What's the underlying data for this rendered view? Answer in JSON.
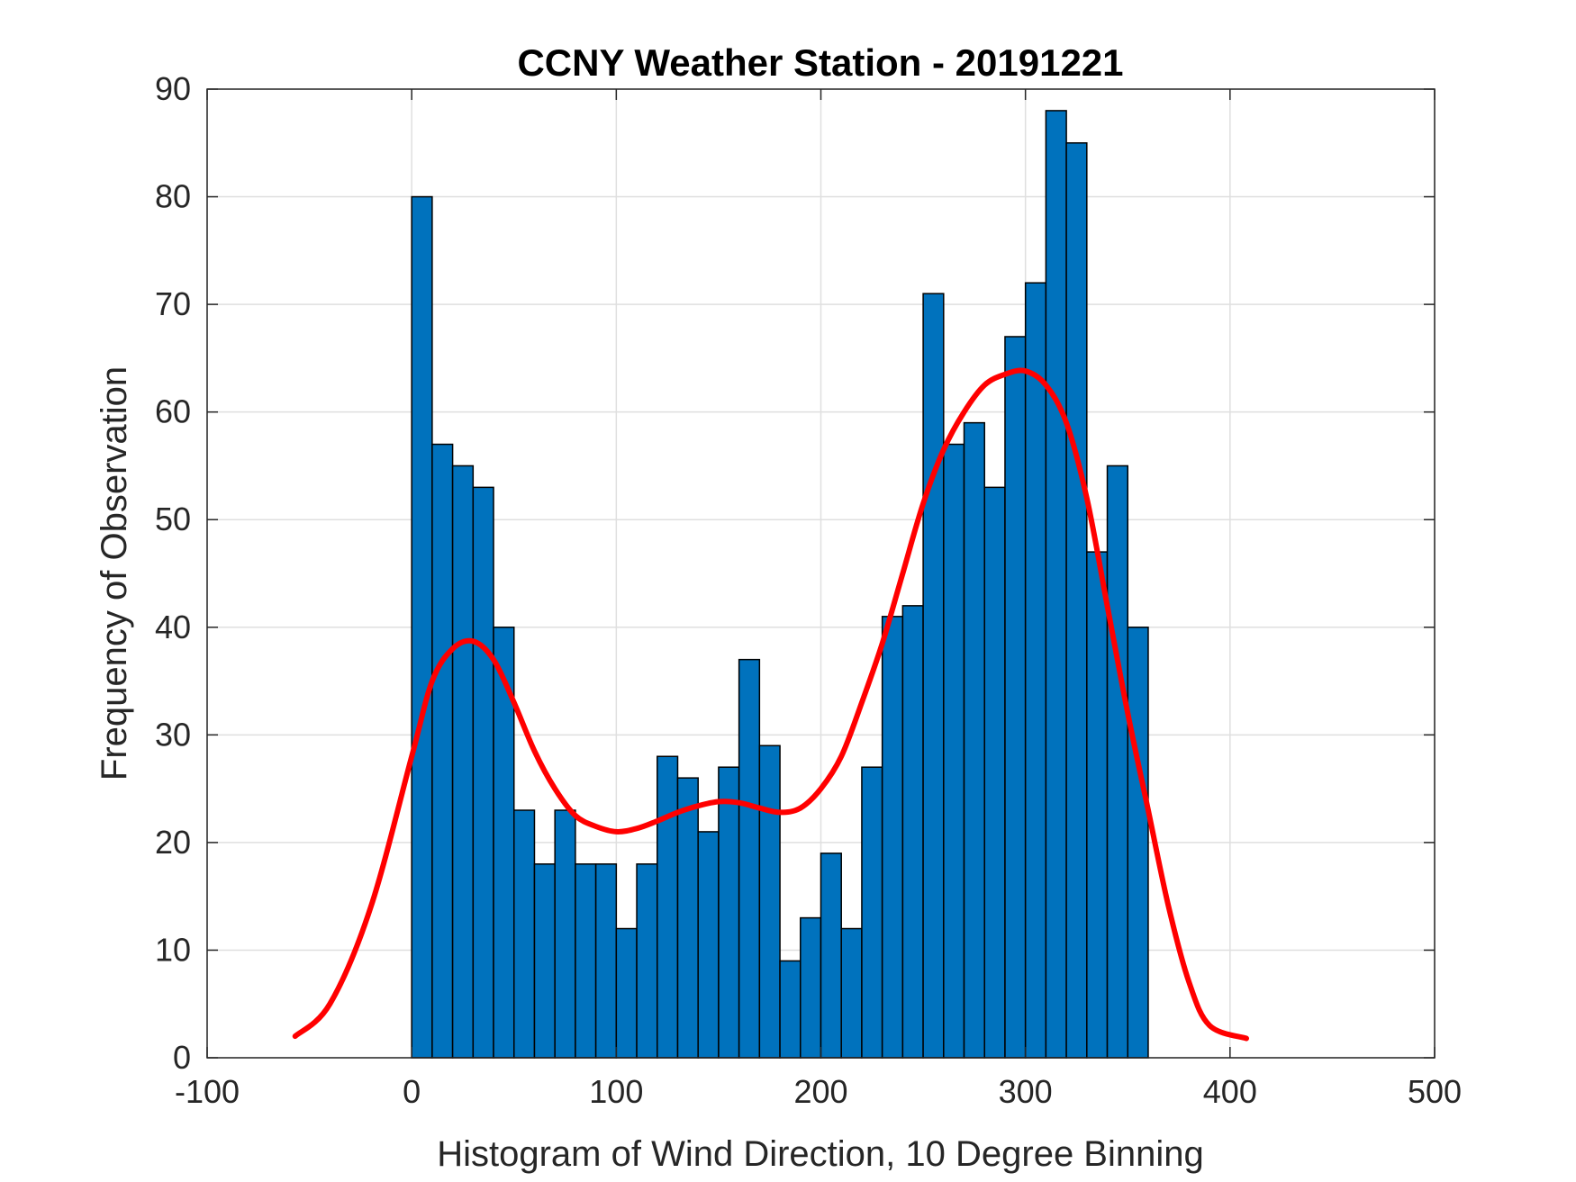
{
  "chart_data": {
    "type": "bar",
    "title": "CCNY Weather Station - 20191221",
    "xlabel": "Histogram of Wind Direction, 10 Degree Binning",
    "ylabel": "Frequency of Observation",
    "xlim": [
      -100,
      500
    ],
    "ylim": [
      0,
      90
    ],
    "xticks": [
      -100,
      0,
      100,
      200,
      300,
      400,
      500
    ],
    "yticks": [
      0,
      10,
      20,
      30,
      40,
      50,
      60,
      70,
      80,
      90
    ],
    "grid": true,
    "bin_width": 10,
    "bin_edges": [
      0,
      10,
      20,
      30,
      40,
      50,
      60,
      70,
      80,
      90,
      100,
      110,
      120,
      130,
      140,
      150,
      160,
      170,
      180,
      190,
      200,
      210,
      220,
      230,
      240,
      250,
      260,
      270,
      280,
      290,
      300,
      310,
      320,
      330,
      340,
      350,
      360
    ],
    "values": [
      80,
      57,
      55,
      53,
      40,
      23,
      18,
      23,
      18,
      18,
      12,
      18,
      28,
      26,
      21,
      27,
      37,
      29,
      9,
      13,
      19,
      12,
      27,
      41,
      42,
      71,
      57,
      59,
      53,
      67,
      72,
      88,
      85,
      47,
      55,
      40
    ],
    "bar_color": "#0072BD",
    "curve": {
      "type": "line",
      "color": "#FF0000",
      "x": [
        -57,
        -40,
        -20,
        0,
        10,
        20,
        30,
        40,
        50,
        60,
        70,
        80,
        90,
        100,
        110,
        120,
        130,
        140,
        150,
        160,
        170,
        180,
        190,
        200,
        210,
        220,
        230,
        240,
        250,
        260,
        270,
        280,
        290,
        300,
        310,
        320,
        330,
        340,
        350,
        360,
        370,
        380,
        390,
        408
      ],
      "y": [
        2,
        5,
        14,
        28,
        35,
        38,
        38.7,
        37,
        33,
        28.5,
        25,
        22.5,
        21.5,
        21,
        21.3,
        22,
        22.8,
        23.4,
        23.8,
        23.7,
        23.2,
        22.8,
        23.2,
        25,
        28,
        33,
        38.5,
        45,
        51.5,
        56.5,
        60,
        62.5,
        63.5,
        63.8,
        62.5,
        59,
        52,
        42,
        32,
        23,
        14,
        7,
        3,
        1.8
      ]
    }
  }
}
